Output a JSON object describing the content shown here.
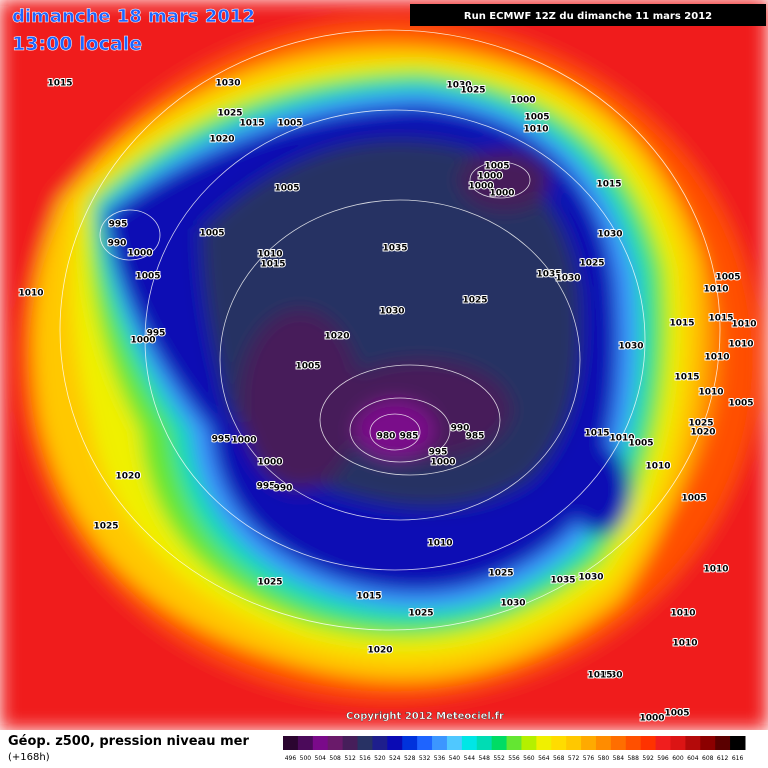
{
  "header": {
    "date": "dimanche 18 mars 2012",
    "time": "13:00 locale",
    "run": "Run ECMWF 12Z du dimanche 11 mars 2012"
  },
  "isobar_labels": [
    1015,
    1030,
    1025,
    1015,
    1005,
    1020,
    1030,
    1025,
    1000,
    1005,
    1010,
    1005,
    1000,
    1000,
    1000,
    1015,
    1005,
    995,
    990,
    1000,
    1005,
    1010,
    1015,
    1035,
    1030,
    1025,
    1035,
    1030,
    1005,
    1010,
    1005,
    1010,
    1025,
    1030,
    1015,
    1015,
    1010,
    995,
    1000,
    1020,
    1030,
    1010,
    1005,
    1010,
    1015,
    1010,
    1005,
    990,
    995,
    1000,
    980,
    985,
    985,
    1015,
    1010,
    1025,
    1020,
    1005,
    995,
    1000,
    1010,
    1000,
    1020,
    995,
    990,
    1005,
    1025,
    1010,
    1025,
    1035,
    1030,
    1010,
    1025,
    1015,
    1030,
    1025,
    1010,
    1020,
    1030,
    1010,
    1015,
    1005,
    1000
  ],
  "legend": {
    "ticks": [
      496,
      500,
      504,
      508,
      512,
      516,
      520,
      524,
      528,
      532,
      536,
      540,
      544,
      548,
      552,
      556,
      560,
      564,
      568,
      572,
      576,
      580,
      584,
      588,
      592,
      596,
      600,
      604,
      608,
      612,
      616
    ],
    "colors": [
      "#2b0530",
      "#4b0a5a",
      "#7a0a8a",
      "#6a1a6a",
      "#461e5a",
      "#283264",
      "#1e1e8c",
      "#0a0ab4",
      "#0032dc",
      "#1e64ff",
      "#3c96ff",
      "#50c8ff",
      "#00e6e6",
      "#00dcb4",
      "#00dc64",
      "#64e632",
      "#b4f000",
      "#f0f000",
      "#ffdc00",
      "#ffc800",
      "#ffaa00",
      "#ff8c00",
      "#ff6e00",
      "#ff5000",
      "#ff3200",
      "#f01e1e",
      "#dc1414",
      "#b40a0a",
      "#8c0000",
      "#5a0000",
      "#000000"
    ]
  },
  "footer": {
    "title": "Géop. z500, pression niveau mer",
    "lead": "(+168h)",
    "copyright": "Copyright 2012 Meteociel.fr"
  }
}
